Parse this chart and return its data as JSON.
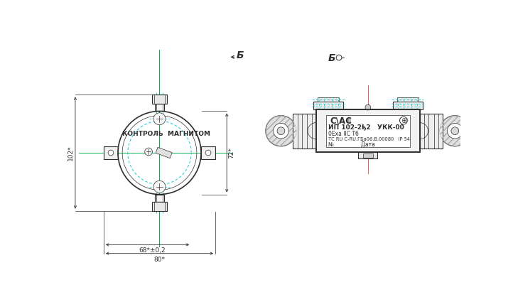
{
  "bg_color": "#ffffff",
  "line_color": "#2d2d2d",
  "cyan_color": "#00c8d4",
  "green_color": "#00b050",
  "red_color": "#e8413a",
  "dim_102": "102*",
  "dim_72": "72*",
  "dim_80": "80*",
  "dim_68": "68*±0,2",
  "text_kontrol": "КОНТРОЛЬ  МАГНИТОМ",
  "label_B": "Б",
  "label_ip102": "ИП 102-2ђ2   УКК-00",
  "label_0exa": "0Exa IIC T6",
  "label_tc": "ТС RU C-RU.ГБа06.В.00080   IP 54",
  "label_no": "№                Дата",
  "label_cnc": "С\\АС",
  "label_reg": "®"
}
